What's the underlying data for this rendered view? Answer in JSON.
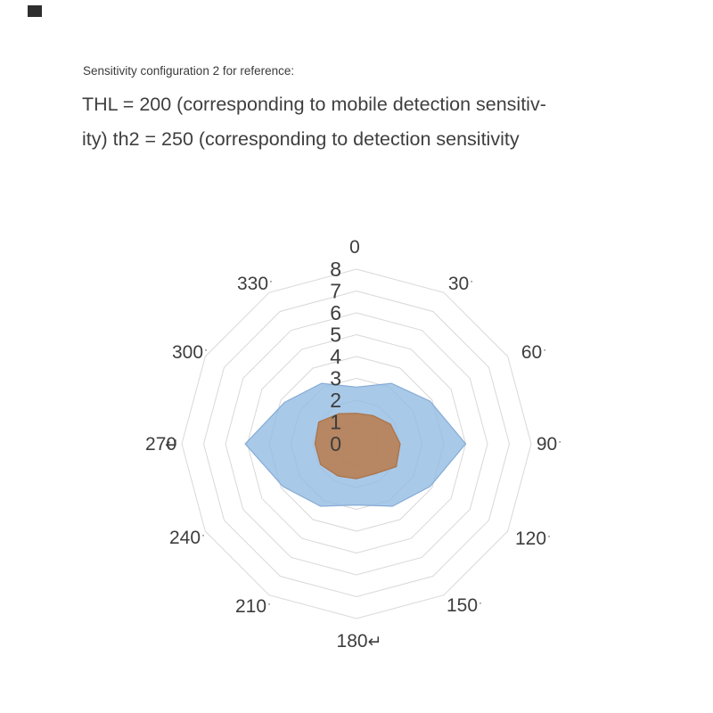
{
  "page": {
    "background": "#ffffff",
    "corner_marker_color": "#2e2e2e"
  },
  "header": {
    "caption": "Sensitivity configuration 2 for reference:",
    "title_line1": "THL = 200 (corresponding to mobile detection sensitiv-",
    "title_line2": "ity) th2 = 250 (corresponding to detection sensitivity"
  },
  "chart_data": {
    "type": "radar",
    "title": "",
    "legend": "none",
    "grid": {
      "rings": 8,
      "shape": "dodecagon",
      "color": "#D8D8D8",
      "spokes": false
    },
    "r_min": 0,
    "r_max": 8,
    "radial_ticks": [
      "0",
      "1",
      "2",
      "3",
      "4",
      "5",
      "6",
      "7",
      "8"
    ],
    "angle_ticks": [
      {
        "angle": 0,
        "label": "0",
        "suffix": ""
      },
      {
        "angle": 30,
        "label": "30",
        "suffix": "·"
      },
      {
        "angle": 60,
        "label": "60",
        "suffix": "·"
      },
      {
        "angle": 90,
        "label": "90",
        "suffix": "·"
      },
      {
        "angle": 120,
        "label": "120",
        "suffix": "·"
      },
      {
        "angle": 150,
        "label": "150",
        "suffix": "·"
      },
      {
        "angle": 180,
        "label": "180",
        "suffix": "↵"
      },
      {
        "angle": 210,
        "label": "210",
        "suffix": "·"
      },
      {
        "angle": 240,
        "label": "240",
        "suffix": "·"
      },
      {
        "angle": 270,
        "label": "270",
        "suffix": "↵",
        "overlap": true
      },
      {
        "angle": 300,
        "label": "300",
        "suffix": "·"
      },
      {
        "angle": 330,
        "label": "330",
        "suffix": "·"
      }
    ],
    "series": [
      {
        "name": "blue-region",
        "values": [
          2.6,
          3.2,
          3.9,
          5.0,
          3.9,
          3.3,
          2.8,
          3.3,
          3.9,
          5.1,
          3.8,
          3.2
        ],
        "fill": "#93BCE3",
        "stroke": "#7EA6D2",
        "opacity": 0.8
      },
      {
        "name": "orange-region",
        "values": [
          1.4,
          1.5,
          1.8,
          2.0,
          2.1,
          1.6,
          1.6,
          1.7,
          1.9,
          1.9,
          2.0,
          1.6
        ],
        "fill": "#B97844",
        "stroke": "#AA6E3E",
        "opacity": 0.82
      }
    ],
    "colors": {
      "grid": "#D8D8D8",
      "tick_label": "#3D3D3D"
    }
  }
}
